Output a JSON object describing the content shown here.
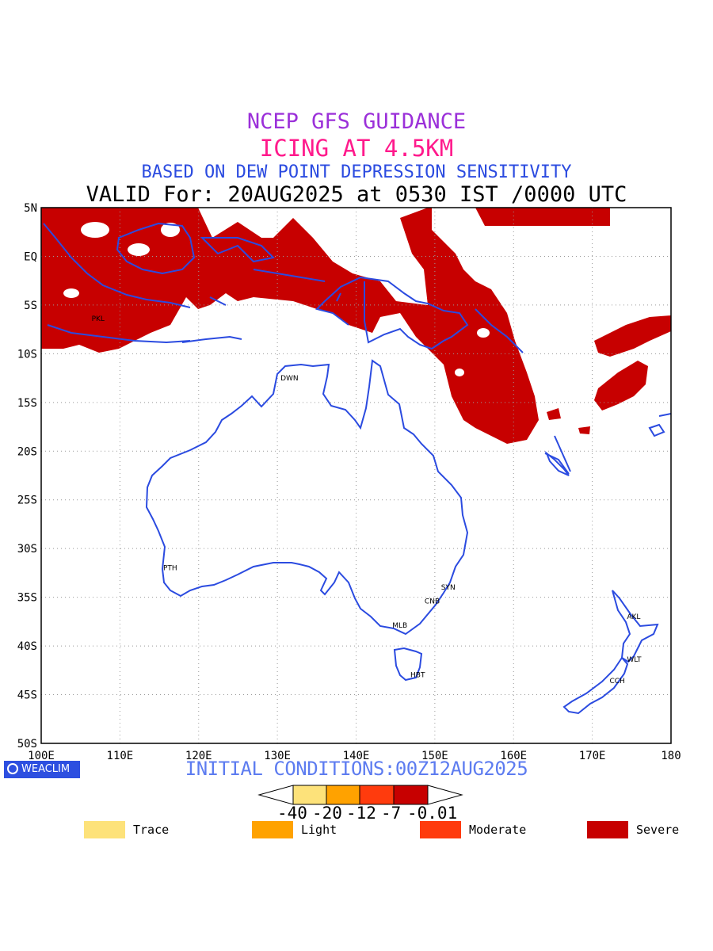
{
  "titles": {
    "line1": "NCEP GFS GUIDANCE",
    "line2": "ICING AT 4.5KM",
    "line3": "BASED ON DEW POINT DEPRESSION SENSITIVITY",
    "line4": "VALID For: 20AUG2025 at 0530 IST /0000 UTC"
  },
  "axes": {
    "lat_labels": [
      "5N",
      "EQ",
      "5S",
      "10S",
      "15S",
      "20S",
      "25S",
      "30S",
      "35S",
      "40S",
      "45S",
      "50S"
    ],
    "lon_labels": [
      "100E",
      "110E",
      "120E",
      "130E",
      "140E",
      "150E",
      "160E",
      "170E",
      "180"
    ]
  },
  "cities": [
    {
      "code": "PKL",
      "lon": 106.8,
      "lat": -6.3
    },
    {
      "code": "DWN",
      "lon": 130.8,
      "lat": -12.4
    },
    {
      "code": "PTH",
      "lon": 115.9,
      "lat": -31.9
    },
    {
      "code": "SYN",
      "lon": 151.2,
      "lat": -33.9
    },
    {
      "code": "CNB",
      "lon": 149.1,
      "lat": -35.3
    },
    {
      "code": "MLB",
      "lon": 145.0,
      "lat": -37.8
    },
    {
      "code": "HBT",
      "lon": 147.3,
      "lat": -42.9
    },
    {
      "code": "AKL",
      "lon": 174.8,
      "lat": -36.9
    },
    {
      "code": "WLT",
      "lon": 174.8,
      "lat": -41.3
    },
    {
      "code": "CCH",
      "lon": 172.6,
      "lat": -43.5
    }
  ],
  "branding": "WEACLIM",
  "initial_conditions": "INITIAL CONDITIONS:00Z12AUG2025",
  "colorbar": {
    "ticks": [
      "-40",
      "-20",
      "-12",
      "-7",
      "-0.01"
    ],
    "colors": [
      "#fde27a",
      "#ffa200",
      "#ff3b0d",
      "#c70000"
    ]
  },
  "legend": [
    {
      "label": "Trace",
      "color": "#fde27a"
    },
    {
      "label": "Light",
      "color": "#ffa200"
    },
    {
      "label": "Moderate",
      "color": "#ff3b0d"
    },
    {
      "label": "Severe",
      "color": "#c70000"
    }
  ],
  "colors": {
    "coast": "#2b4be0",
    "icing": "#c70000",
    "grid": "#999999"
  }
}
